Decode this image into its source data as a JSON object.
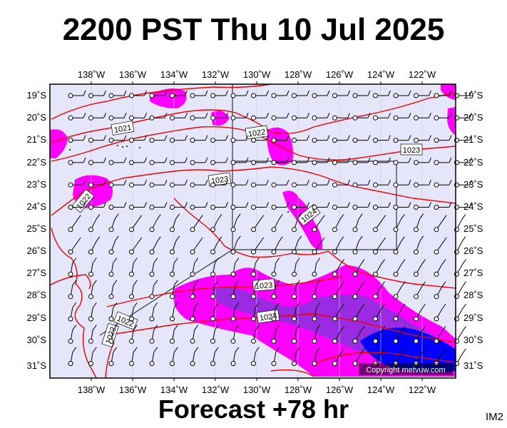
{
  "title": "2200 PST Thu 10 Jul 2025",
  "forecast": "Forecast +78 hr",
  "image_code": "IM2",
  "copyright": "Copyright metvuw.com",
  "lon_labels": [
    "138˚W",
    "136˚W",
    "134˚W",
    "132˚W",
    "130˚W",
    "128˚W",
    "126˚W",
    "124˚W",
    "122˚W"
  ],
  "lat_labels": [
    "19˚S",
    "20˚S",
    "21˚S",
    "22˚S",
    "23˚S",
    "24˚S",
    "25˚S",
    "26˚S",
    "27˚S",
    "28˚S",
    "29˚S",
    "30˚S",
    "31˚S"
  ],
  "isobar_labels": [
    "1021",
    "1022",
    "1023",
    "1023",
    "1023",
    "1024",
    "1022",
    "1022",
    "1023",
    "1022",
    "1022"
  ],
  "colors": {
    "ocean": "#e6e6fa",
    "isobar": "#ee0000",
    "rain_light": "#ff00ff",
    "rain_moderate": "#9a2be2",
    "rain_heavy": "#0000ff"
  }
}
